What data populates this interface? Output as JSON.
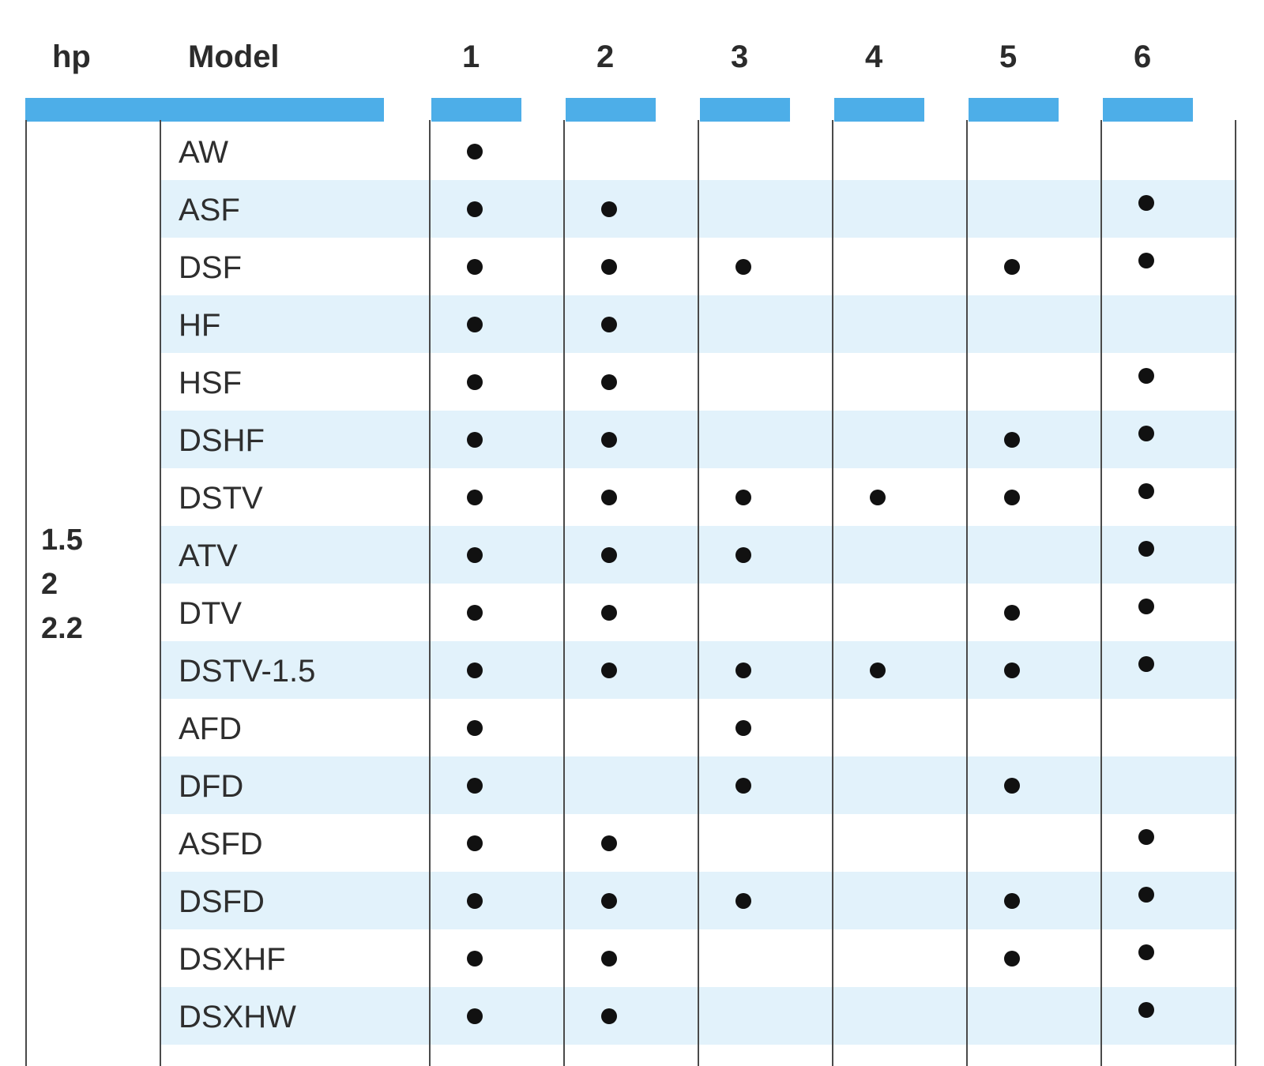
{
  "table": {
    "header": {
      "hp": "hp",
      "model": "Model"
    },
    "columns": [
      "1",
      "2",
      "3",
      "4",
      "5",
      "6"
    ],
    "hp_values": [
      "1.5",
      "2",
      "2.2"
    ],
    "rows": [
      {
        "model": "AW",
        "marks": [
          true,
          false,
          false,
          false,
          false,
          false
        ]
      },
      {
        "model": "ASF",
        "marks": [
          true,
          true,
          false,
          false,
          false,
          true
        ]
      },
      {
        "model": "DSF",
        "marks": [
          true,
          true,
          true,
          false,
          true,
          true
        ]
      },
      {
        "model": "HF",
        "marks": [
          true,
          true,
          false,
          false,
          false,
          false
        ]
      },
      {
        "model": "HSF",
        "marks": [
          true,
          true,
          false,
          false,
          false,
          true
        ]
      },
      {
        "model": "DSHF",
        "marks": [
          true,
          true,
          false,
          false,
          true,
          true
        ]
      },
      {
        "model": "DSTV",
        "marks": [
          true,
          true,
          true,
          true,
          true,
          true
        ]
      },
      {
        "model": "ATV",
        "marks": [
          true,
          true,
          true,
          false,
          false,
          true
        ]
      },
      {
        "model": "DTV",
        "marks": [
          true,
          true,
          false,
          false,
          true,
          true
        ]
      },
      {
        "model": "DSTV-1.5",
        "marks": [
          true,
          true,
          true,
          true,
          true,
          true
        ]
      },
      {
        "model": "AFD",
        "marks": [
          true,
          false,
          true,
          false,
          false,
          false
        ]
      },
      {
        "model": "DFD",
        "marks": [
          true,
          false,
          true,
          false,
          true,
          false
        ]
      },
      {
        "model": "ASFD",
        "marks": [
          true,
          true,
          false,
          false,
          false,
          true
        ]
      },
      {
        "model": "DSFD",
        "marks": [
          true,
          true,
          true,
          false,
          true,
          true
        ]
      },
      {
        "model": "DSXHF",
        "marks": [
          true,
          true,
          false,
          false,
          true,
          true
        ]
      },
      {
        "model": "DSXHW",
        "marks": [
          true,
          true,
          false,
          false,
          false,
          true
        ]
      }
    ]
  },
  "colors": {
    "header_bar": "#4daee8",
    "row_shade": "#e2f2fb",
    "dot": "#111111",
    "rule": "#4a4a4a"
  }
}
